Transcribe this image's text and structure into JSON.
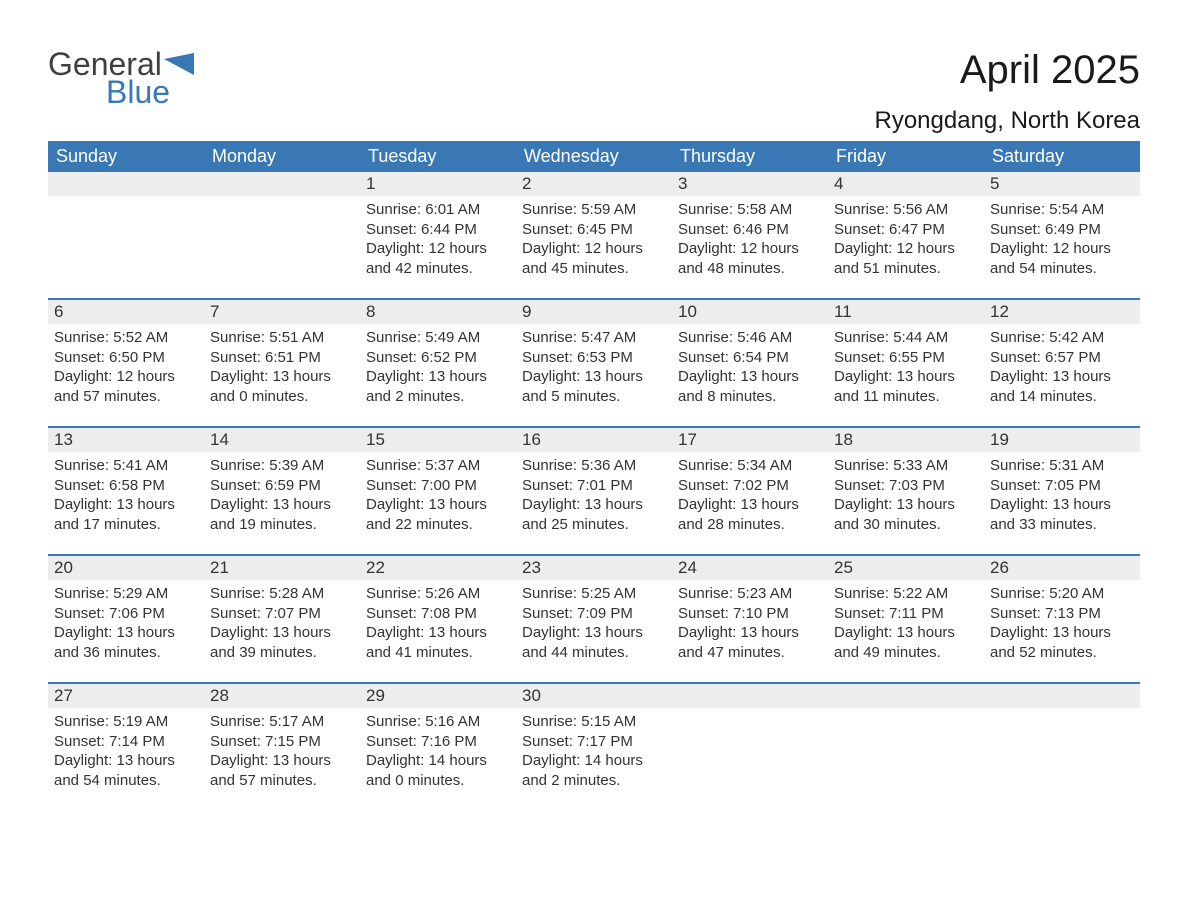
{
  "logo": {
    "word1": "General",
    "word2": "Blue"
  },
  "title": "April 2025",
  "subtitle": "Ryongdang, North Korea",
  "colors": {
    "header_bg": "#3a78b5",
    "header_text": "#ffffff",
    "daynum_bg": "#ededed",
    "border_top": "#3a78b5",
    "text": "#333333",
    "page_bg": "#ffffff",
    "logo_gray": "#404040",
    "logo_blue": "#3a78b5"
  },
  "typography": {
    "title_fontsize": 40,
    "subtitle_fontsize": 24,
    "th_fontsize": 18,
    "daynum_fontsize": 17,
    "detail_fontsize": 15,
    "logo_fontsize": 32
  },
  "weekdays": [
    "Sunday",
    "Monday",
    "Tuesday",
    "Wednesday",
    "Thursday",
    "Friday",
    "Saturday"
  ],
  "weeks": [
    {
      "nums": [
        "",
        "",
        "1",
        "2",
        "3",
        "4",
        "5"
      ],
      "details": [
        "",
        "",
        "Sunrise: 6:01 AM\nSunset: 6:44 PM\nDaylight: 12 hours and 42 minutes.",
        "Sunrise: 5:59 AM\nSunset: 6:45 PM\nDaylight: 12 hours and 45 minutes.",
        "Sunrise: 5:58 AM\nSunset: 6:46 PM\nDaylight: 12 hours and 48 minutes.",
        "Sunrise: 5:56 AM\nSunset: 6:47 PM\nDaylight: 12 hours and 51 minutes.",
        "Sunrise: 5:54 AM\nSunset: 6:49 PM\nDaylight: 12 hours and 54 minutes."
      ]
    },
    {
      "nums": [
        "6",
        "7",
        "8",
        "9",
        "10",
        "11",
        "12"
      ],
      "details": [
        "Sunrise: 5:52 AM\nSunset: 6:50 PM\nDaylight: 12 hours and 57 minutes.",
        "Sunrise: 5:51 AM\nSunset: 6:51 PM\nDaylight: 13 hours and 0 minutes.",
        "Sunrise: 5:49 AM\nSunset: 6:52 PM\nDaylight: 13 hours and 2 minutes.",
        "Sunrise: 5:47 AM\nSunset: 6:53 PM\nDaylight: 13 hours and 5 minutes.",
        "Sunrise: 5:46 AM\nSunset: 6:54 PM\nDaylight: 13 hours and 8 minutes.",
        "Sunrise: 5:44 AM\nSunset: 6:55 PM\nDaylight: 13 hours and 11 minutes.",
        "Sunrise: 5:42 AM\nSunset: 6:57 PM\nDaylight: 13 hours and 14 minutes."
      ]
    },
    {
      "nums": [
        "13",
        "14",
        "15",
        "16",
        "17",
        "18",
        "19"
      ],
      "details": [
        "Sunrise: 5:41 AM\nSunset: 6:58 PM\nDaylight: 13 hours and 17 minutes.",
        "Sunrise: 5:39 AM\nSunset: 6:59 PM\nDaylight: 13 hours and 19 minutes.",
        "Sunrise: 5:37 AM\nSunset: 7:00 PM\nDaylight: 13 hours and 22 minutes.",
        "Sunrise: 5:36 AM\nSunset: 7:01 PM\nDaylight: 13 hours and 25 minutes.",
        "Sunrise: 5:34 AM\nSunset: 7:02 PM\nDaylight: 13 hours and 28 minutes.",
        "Sunrise: 5:33 AM\nSunset: 7:03 PM\nDaylight: 13 hours and 30 minutes.",
        "Sunrise: 5:31 AM\nSunset: 7:05 PM\nDaylight: 13 hours and 33 minutes."
      ]
    },
    {
      "nums": [
        "20",
        "21",
        "22",
        "23",
        "24",
        "25",
        "26"
      ],
      "details": [
        "Sunrise: 5:29 AM\nSunset: 7:06 PM\nDaylight: 13 hours and 36 minutes.",
        "Sunrise: 5:28 AM\nSunset: 7:07 PM\nDaylight: 13 hours and 39 minutes.",
        "Sunrise: 5:26 AM\nSunset: 7:08 PM\nDaylight: 13 hours and 41 minutes.",
        "Sunrise: 5:25 AM\nSunset: 7:09 PM\nDaylight: 13 hours and 44 minutes.",
        "Sunrise: 5:23 AM\nSunset: 7:10 PM\nDaylight: 13 hours and 47 minutes.",
        "Sunrise: 5:22 AM\nSunset: 7:11 PM\nDaylight: 13 hours and 49 minutes.",
        "Sunrise: 5:20 AM\nSunset: 7:13 PM\nDaylight: 13 hours and 52 minutes."
      ]
    },
    {
      "nums": [
        "27",
        "28",
        "29",
        "30",
        "",
        "",
        ""
      ],
      "details": [
        "Sunrise: 5:19 AM\nSunset: 7:14 PM\nDaylight: 13 hours and 54 minutes.",
        "Sunrise: 5:17 AM\nSunset: 7:15 PM\nDaylight: 13 hours and 57 minutes.",
        "Sunrise: 5:16 AM\nSunset: 7:16 PM\nDaylight: 14 hours and 0 minutes.",
        "Sunrise: 5:15 AM\nSunset: 7:17 PM\nDaylight: 14 hours and 2 minutes.",
        "",
        "",
        ""
      ]
    }
  ]
}
